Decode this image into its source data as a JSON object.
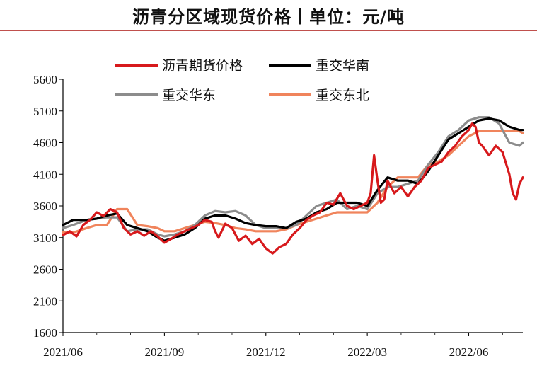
{
  "chart_data": {
    "type": "line",
    "title": "沥青分区域现货价格丨单位：元/吨",
    "xlabel": "",
    "ylabel": "",
    "ylim": [
      1600,
      5600
    ],
    "yticks": [
      1600,
      2100,
      2600,
      3100,
      3600,
      4100,
      4600,
      5100,
      5600
    ],
    "xlim": [
      0,
      13.6
    ],
    "xticks": [
      {
        "label": "2021/06",
        "x": 0
      },
      {
        "label": "2021/09",
        "x": 3
      },
      {
        "label": "2021/12",
        "x": 6
      },
      {
        "label": "2022/03",
        "x": 9
      },
      {
        "label": "2022/06",
        "x": 12
      }
    ],
    "legend_position": "top",
    "series": [
      {
        "name": "沥青期货价格",
        "color": "#d7191c",
        "points": [
          [
            0.0,
            3140
          ],
          [
            0.2,
            3200
          ],
          [
            0.4,
            3120
          ],
          [
            0.6,
            3300
          ],
          [
            0.8,
            3380
          ],
          [
            1.0,
            3500
          ],
          [
            1.2,
            3440
          ],
          [
            1.4,
            3550
          ],
          [
            1.6,
            3500
          ],
          [
            1.8,
            3250
          ],
          [
            2.0,
            3150
          ],
          [
            2.2,
            3200
          ],
          [
            2.4,
            3130
          ],
          [
            2.6,
            3200
          ],
          [
            2.8,
            3120
          ],
          [
            3.0,
            3020
          ],
          [
            3.2,
            3080
          ],
          [
            3.4,
            3150
          ],
          [
            3.6,
            3200
          ],
          [
            3.8,
            3250
          ],
          [
            4.0,
            3300
          ],
          [
            4.2,
            3380
          ],
          [
            4.4,
            3350
          ],
          [
            4.5,
            3200
          ],
          [
            4.6,
            3100
          ],
          [
            4.8,
            3320
          ],
          [
            5.0,
            3250
          ],
          [
            5.2,
            3050
          ],
          [
            5.4,
            3130
          ],
          [
            5.6,
            3000
          ],
          [
            5.8,
            3080
          ],
          [
            6.0,
            2930
          ],
          [
            6.2,
            2850
          ],
          [
            6.4,
            2950
          ],
          [
            6.6,
            3000
          ],
          [
            6.8,
            3150
          ],
          [
            7.0,
            3250
          ],
          [
            7.2,
            3380
          ],
          [
            7.4,
            3450
          ],
          [
            7.6,
            3500
          ],
          [
            7.8,
            3650
          ],
          [
            8.0,
            3620
          ],
          [
            8.2,
            3800
          ],
          [
            8.4,
            3600
          ],
          [
            8.6,
            3550
          ],
          [
            8.8,
            3600
          ],
          [
            9.0,
            3650
          ],
          [
            9.1,
            3800
          ],
          [
            9.2,
            4400
          ],
          [
            9.3,
            4000
          ],
          [
            9.4,
            3650
          ],
          [
            9.5,
            3700
          ],
          [
            9.6,
            4000
          ],
          [
            9.8,
            3800
          ],
          [
            10.0,
            3900
          ],
          [
            10.2,
            3750
          ],
          [
            10.4,
            3900
          ],
          [
            10.6,
            4000
          ],
          [
            10.8,
            4200
          ],
          [
            11.0,
            4250
          ],
          [
            11.2,
            4300
          ],
          [
            11.4,
            4450
          ],
          [
            11.6,
            4550
          ],
          [
            11.8,
            4700
          ],
          [
            12.0,
            4800
          ],
          [
            12.1,
            4900
          ],
          [
            12.2,
            4850
          ],
          [
            12.3,
            4600
          ],
          [
            12.4,
            4550
          ],
          [
            12.6,
            4400
          ],
          [
            12.8,
            4550
          ],
          [
            13.0,
            4450
          ],
          [
            13.2,
            4100
          ],
          [
            13.3,
            3800
          ],
          [
            13.4,
            3700
          ],
          [
            13.5,
            3950
          ],
          [
            13.6,
            4050
          ]
        ]
      },
      {
        "name": "重交华南",
        "color": "#000000",
        "points": [
          [
            0.0,
            3300
          ],
          [
            0.3,
            3380
          ],
          [
            0.7,
            3380
          ],
          [
            1.0,
            3400
          ],
          [
            1.3,
            3450
          ],
          [
            1.6,
            3480
          ],
          [
            1.9,
            3300
          ],
          [
            2.2,
            3250
          ],
          [
            2.5,
            3200
          ],
          [
            2.8,
            3100
          ],
          [
            3.0,
            3050
          ],
          [
            3.3,
            3100
          ],
          [
            3.6,
            3150
          ],
          [
            3.9,
            3250
          ],
          [
            4.2,
            3400
          ],
          [
            4.5,
            3450
          ],
          [
            4.8,
            3450
          ],
          [
            5.1,
            3400
          ],
          [
            5.4,
            3330
          ],
          [
            5.7,
            3300
          ],
          [
            6.0,
            3280
          ],
          [
            6.3,
            3280
          ],
          [
            6.6,
            3250
          ],
          [
            6.9,
            3350
          ],
          [
            7.2,
            3400
          ],
          [
            7.5,
            3500
          ],
          [
            7.8,
            3550
          ],
          [
            8.1,
            3650
          ],
          [
            8.4,
            3650
          ],
          [
            8.7,
            3650
          ],
          [
            9.0,
            3600
          ],
          [
            9.3,
            3850
          ],
          [
            9.6,
            4050
          ],
          [
            9.9,
            4000
          ],
          [
            10.2,
            4000
          ],
          [
            10.5,
            3950
          ],
          [
            10.8,
            4150
          ],
          [
            11.1,
            4400
          ],
          [
            11.4,
            4650
          ],
          [
            11.7,
            4750
          ],
          [
            12.0,
            4850
          ],
          [
            12.3,
            4950
          ],
          [
            12.6,
            4980
          ],
          [
            12.9,
            4950
          ],
          [
            13.2,
            4850
          ],
          [
            13.5,
            4800
          ],
          [
            13.6,
            4800
          ]
        ]
      },
      {
        "name": "重交华东",
        "color": "#8c8c8c",
        "points": [
          [
            0.0,
            3250
          ],
          [
            0.3,
            3300
          ],
          [
            0.7,
            3380
          ],
          [
            1.0,
            3400
          ],
          [
            1.3,
            3420
          ],
          [
            1.6,
            3420
          ],
          [
            1.9,
            3200
          ],
          [
            2.2,
            3230
          ],
          [
            2.5,
            3230
          ],
          [
            2.8,
            3150
          ],
          [
            3.0,
            3120
          ],
          [
            3.3,
            3150
          ],
          [
            3.6,
            3200
          ],
          [
            3.9,
            3300
          ],
          [
            4.2,
            3450
          ],
          [
            4.5,
            3520
          ],
          [
            4.8,
            3500
          ],
          [
            5.1,
            3520
          ],
          [
            5.4,
            3450
          ],
          [
            5.7,
            3300
          ],
          [
            6.0,
            3250
          ],
          [
            6.3,
            3250
          ],
          [
            6.6,
            3250
          ],
          [
            6.9,
            3300
          ],
          [
            7.2,
            3450
          ],
          [
            7.5,
            3600
          ],
          [
            7.8,
            3650
          ],
          [
            8.1,
            3700
          ],
          [
            8.4,
            3550
          ],
          [
            8.7,
            3600
          ],
          [
            9.0,
            3550
          ],
          [
            9.3,
            3800
          ],
          [
            9.6,
            3900
          ],
          [
            9.9,
            3900
          ],
          [
            10.2,
            3950
          ],
          [
            10.5,
            4000
          ],
          [
            10.8,
            4250
          ],
          [
            11.1,
            4450
          ],
          [
            11.4,
            4700
          ],
          [
            11.7,
            4800
          ],
          [
            12.0,
            4950
          ],
          [
            12.3,
            5000
          ],
          [
            12.6,
            5000
          ],
          [
            12.9,
            4900
          ],
          [
            13.2,
            4600
          ],
          [
            13.5,
            4550
          ],
          [
            13.6,
            4600
          ]
        ]
      },
      {
        "name": "重交东北",
        "color": "#f0845c",
        "points": [
          [
            0.0,
            3180
          ],
          [
            0.3,
            3180
          ],
          [
            0.7,
            3250
          ],
          [
            1.0,
            3300
          ],
          [
            1.3,
            3300
          ],
          [
            1.6,
            3550
          ],
          [
            1.9,
            3550
          ],
          [
            2.2,
            3300
          ],
          [
            2.5,
            3280
          ],
          [
            2.8,
            3250
          ],
          [
            3.0,
            3200
          ],
          [
            3.3,
            3200
          ],
          [
            3.6,
            3250
          ],
          [
            3.9,
            3300
          ],
          [
            4.2,
            3350
          ],
          [
            4.5,
            3330
          ],
          [
            4.8,
            3300
          ],
          [
            5.1,
            3250
          ],
          [
            5.4,
            3230
          ],
          [
            5.7,
            3200
          ],
          [
            6.0,
            3200
          ],
          [
            6.3,
            3200
          ],
          [
            6.6,
            3230
          ],
          [
            6.9,
            3300
          ],
          [
            7.2,
            3350
          ],
          [
            7.5,
            3400
          ],
          [
            7.8,
            3450
          ],
          [
            8.1,
            3500
          ],
          [
            8.4,
            3500
          ],
          [
            8.7,
            3500
          ],
          [
            9.0,
            3500
          ],
          [
            9.3,
            3650
          ],
          [
            9.6,
            3900
          ],
          [
            9.9,
            4050
          ],
          [
            10.2,
            4050
          ],
          [
            10.5,
            4050
          ],
          [
            10.8,
            4250
          ],
          [
            11.1,
            4300
          ],
          [
            11.4,
            4400
          ],
          [
            11.7,
            4550
          ],
          [
            12.0,
            4700
          ],
          [
            12.3,
            4780
          ],
          [
            12.6,
            4780
          ],
          [
            12.9,
            4780
          ],
          [
            13.2,
            4780
          ],
          [
            13.5,
            4780
          ],
          [
            13.6,
            4750
          ]
        ]
      }
    ]
  }
}
